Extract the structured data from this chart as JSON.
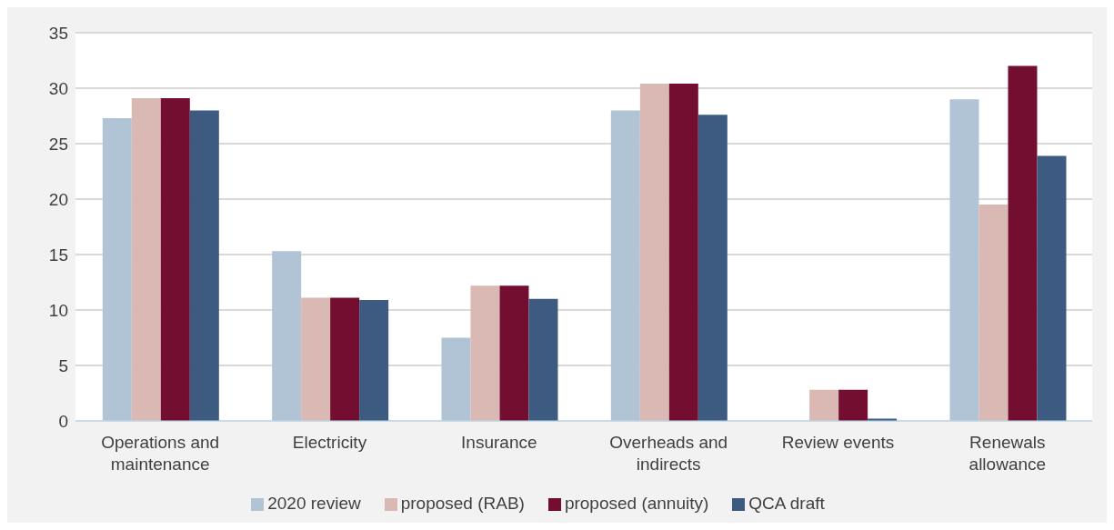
{
  "chart_data": {
    "type": "bar",
    "categories": [
      "Operations and maintenance",
      "Electricity",
      "Insurance",
      "Overheads and indirects",
      "Review events",
      "Renewals allowance"
    ],
    "series": [
      {
        "name": "2020 review",
        "color": "#b0c4d6",
        "values": [
          27.3,
          15.3,
          7.5,
          28.0,
          0,
          29.0
        ]
      },
      {
        "name": "proposed (RAB)",
        "color": "#dab8b3",
        "values": [
          29.1,
          11.1,
          12.2,
          30.4,
          2.8,
          19.5
        ]
      },
      {
        "name": "proposed (annuity)",
        "color": "#730e31",
        "values": [
          29.1,
          11.1,
          12.2,
          30.4,
          2.8,
          32.0
        ]
      },
      {
        "name": "QCA draft",
        "color": "#3d5a80",
        "values": [
          28.0,
          10.9,
          11.0,
          27.6,
          0.2,
          23.9
        ]
      }
    ],
    "ylim": [
      0,
      35
    ],
    "yticks": [
      0,
      5,
      10,
      15,
      20,
      25,
      30,
      35
    ],
    "grid": "y",
    "legend": "bottom"
  }
}
